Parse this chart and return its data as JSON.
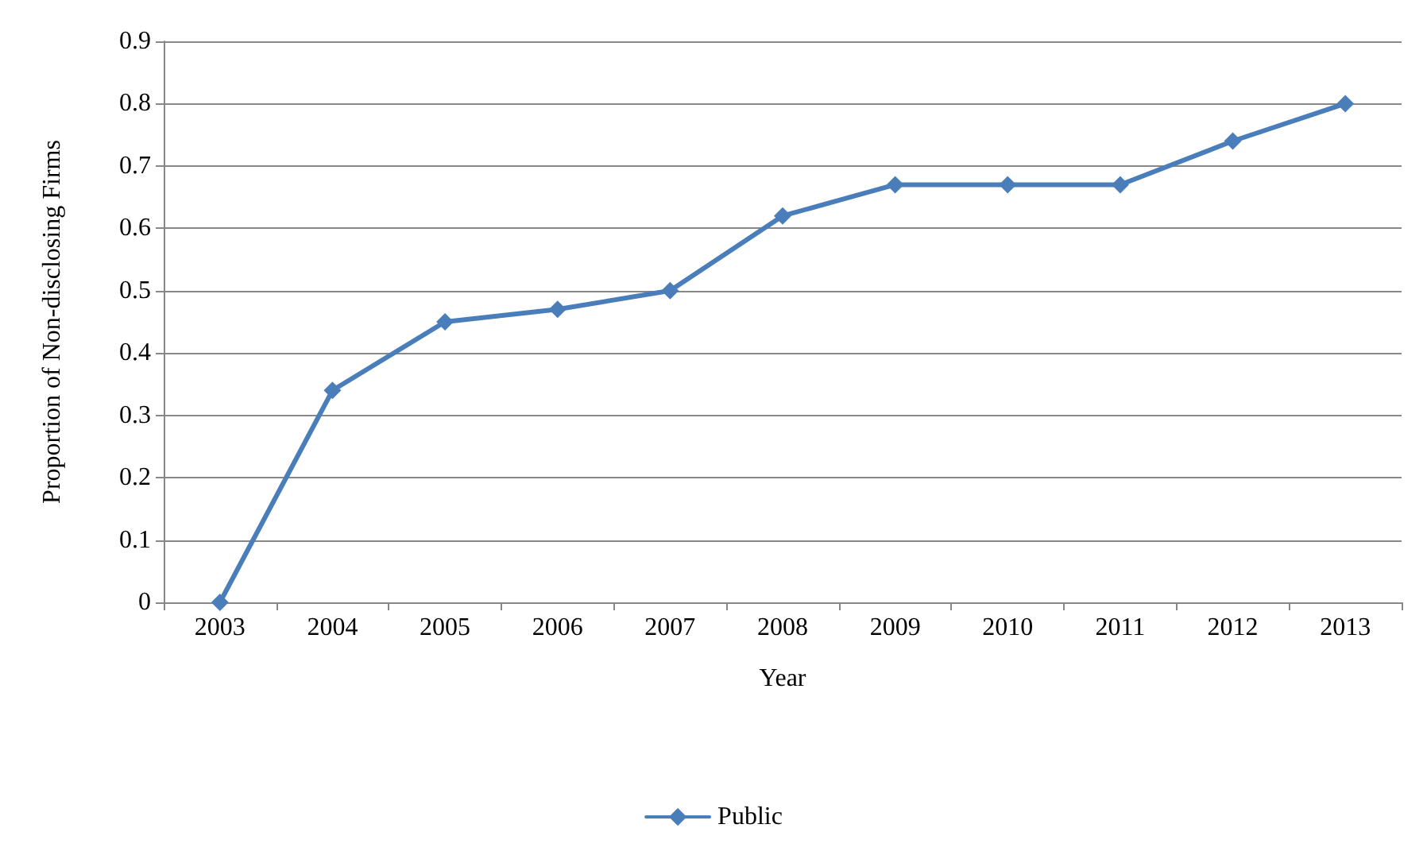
{
  "chart_data": {
    "type": "line",
    "xlabel": "Year",
    "ylabel": "Proportion of Non-disclosing Firms",
    "categories": [
      "2003",
      "2004",
      "2005",
      "2006",
      "2007",
      "2008",
      "2009",
      "2010",
      "2011",
      "2012",
      "2013"
    ],
    "series": [
      {
        "name": "Public",
        "color": "#4a7ebb",
        "values": [
          0,
          0.34,
          0.45,
          0.47,
          0.5,
          0.62,
          0.67,
          0.67,
          0.67,
          0.74,
          0.8
        ]
      }
    ],
    "ylim": [
      0,
      0.9
    ],
    "yticks": [
      0,
      0.1,
      0.2,
      0.3,
      0.4,
      0.5,
      0.6,
      0.7,
      0.8,
      0.9
    ],
    "grid": "y",
    "legend": "bottom",
    "marker": "diamond",
    "line_style": "solid"
  }
}
